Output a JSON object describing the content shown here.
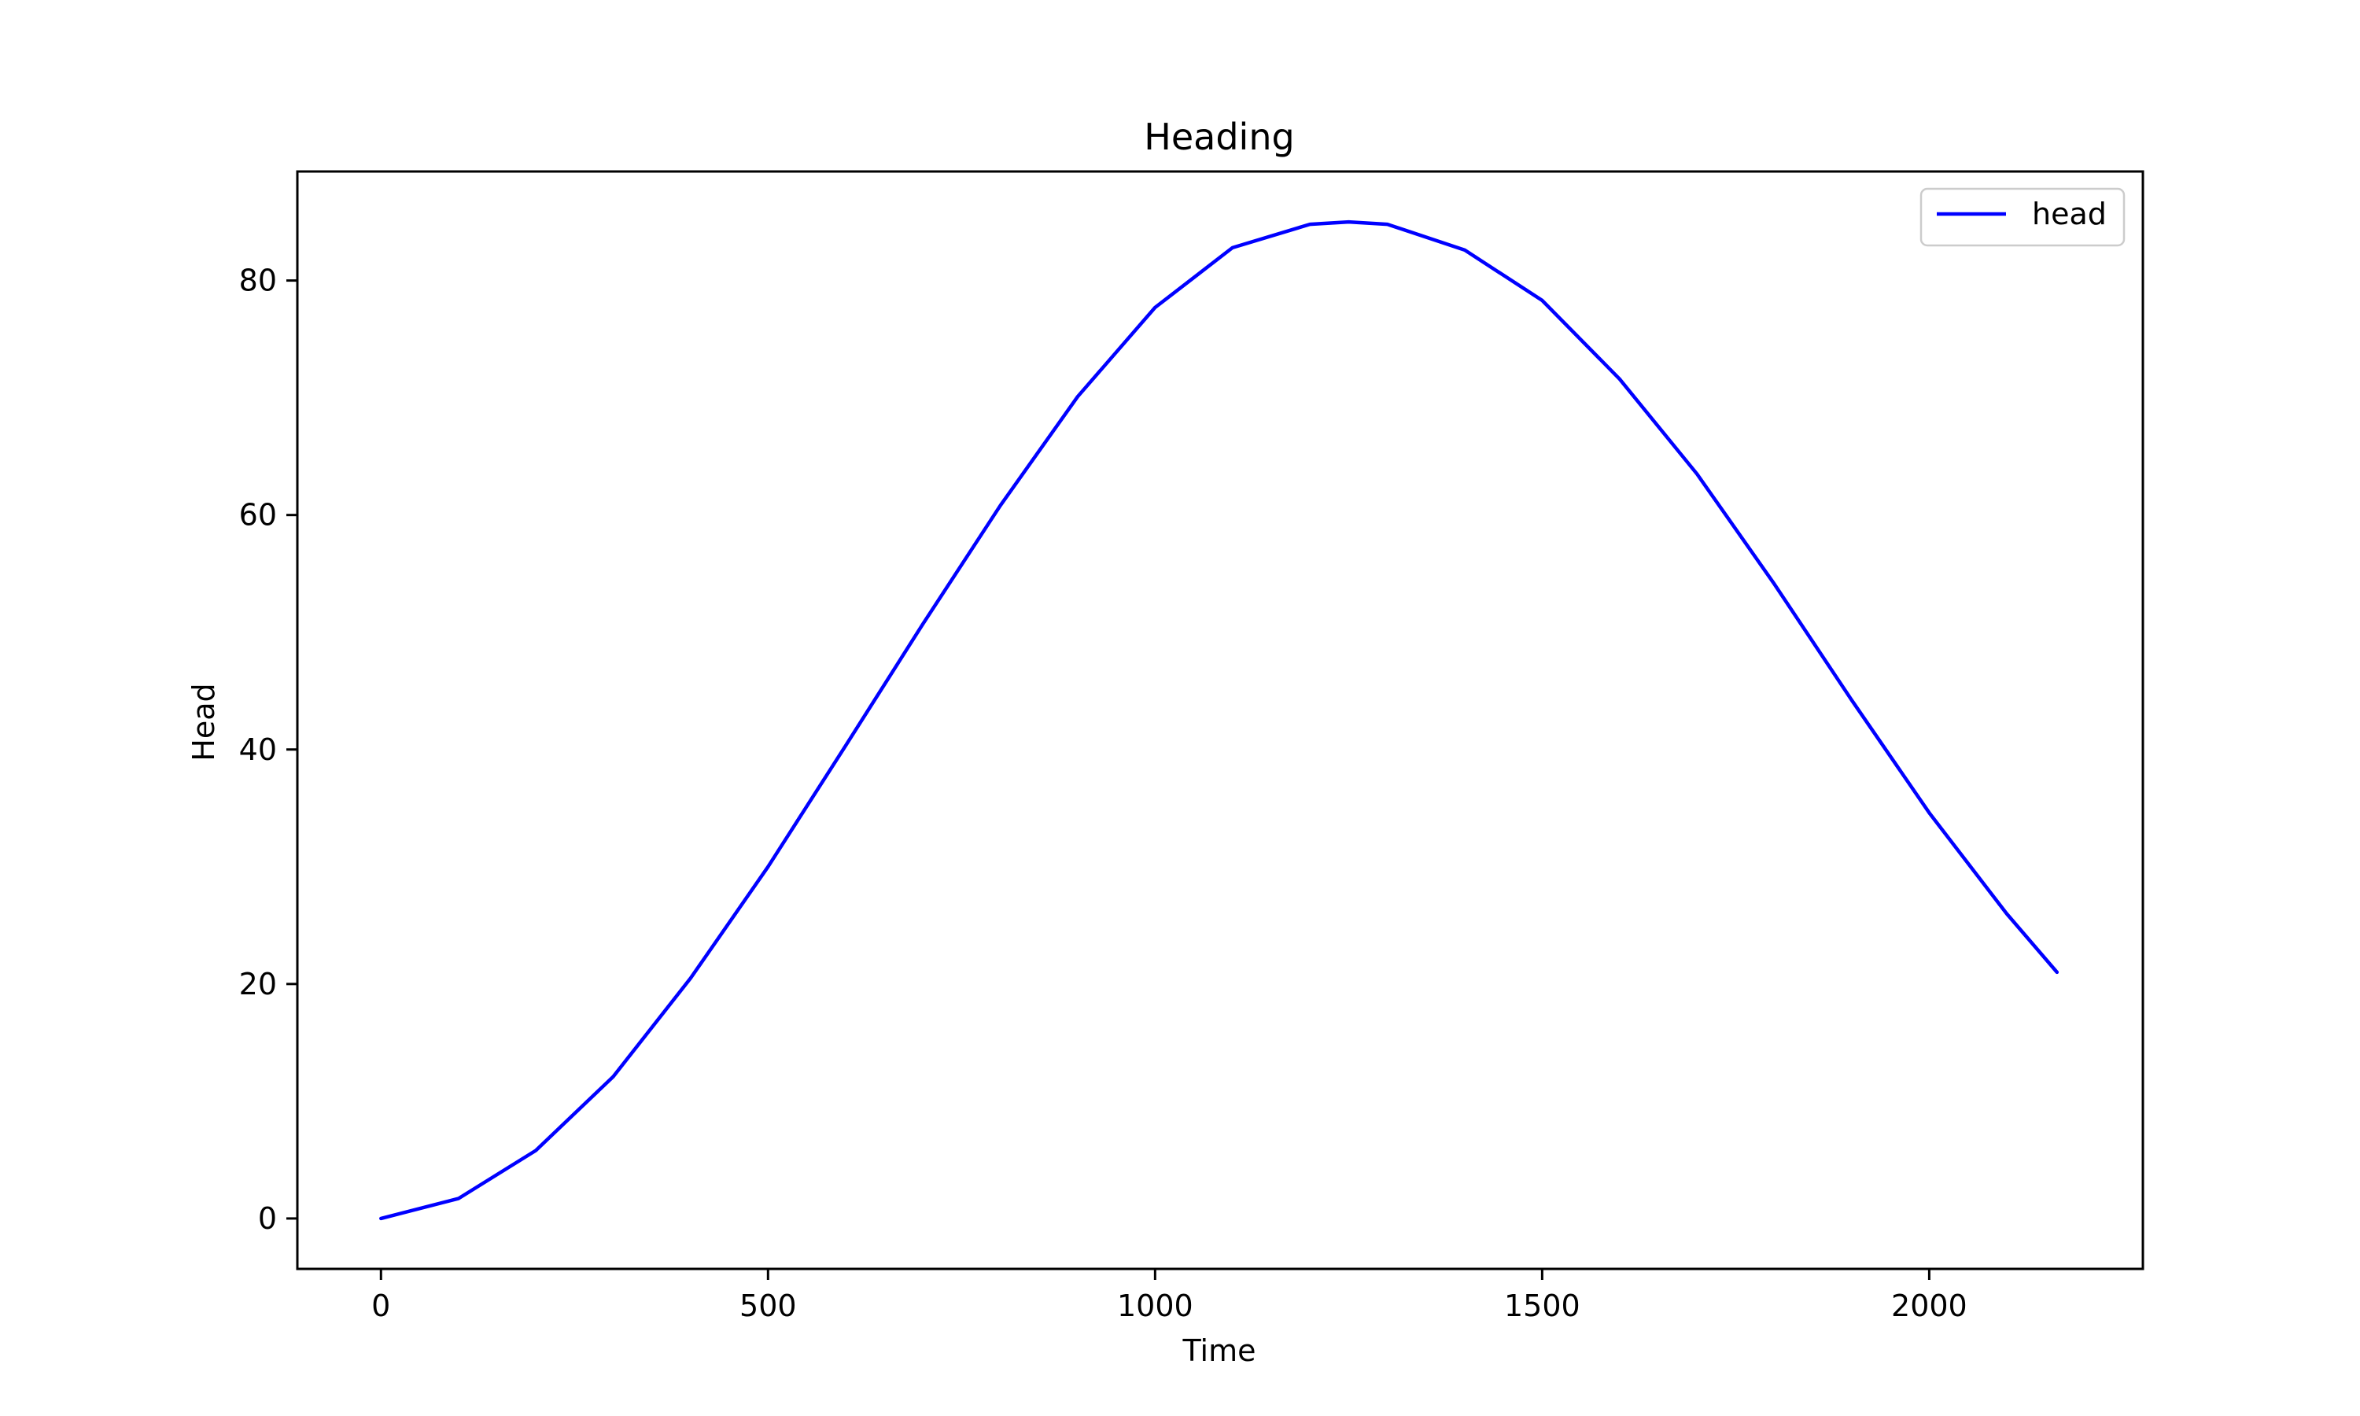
{
  "chart_data": {
    "type": "line",
    "title": "Heading",
    "xlabel": "Time",
    "ylabel": "Head",
    "xlim": [
      -108,
      2276
    ],
    "ylim": [
      -4.3,
      89.3
    ],
    "xticks": [
      0,
      500,
      1000,
      1500,
      2000
    ],
    "yticks": [
      0,
      20,
      40,
      60,
      80
    ],
    "xtick_labels": [
      "0",
      "500",
      "1000",
      "1500",
      "2000"
    ],
    "ytick_labels": [
      "0",
      "20",
      "40",
      "60",
      "80"
    ],
    "grid": false,
    "legend_position": "upper right",
    "series": [
      {
        "name": "head",
        "color": "#0000ff",
        "x": [
          0,
          100,
          200,
          300,
          400,
          500,
          600,
          700,
          800,
          900,
          1000,
          1100,
          1200,
          1250,
          1300,
          1400,
          1500,
          1600,
          1700,
          1800,
          1900,
          2000,
          2100,
          2165
        ],
        "y": [
          0,
          1.7,
          5.8,
          12.1,
          20.5,
          30.0,
          40.3,
          50.7,
          60.8,
          70.1,
          77.7,
          82.8,
          84.8,
          85.0,
          84.8,
          82.6,
          78.3,
          71.6,
          63.5,
          54.1,
          44.2,
          34.6,
          26.0,
          21.0
        ]
      }
    ]
  }
}
